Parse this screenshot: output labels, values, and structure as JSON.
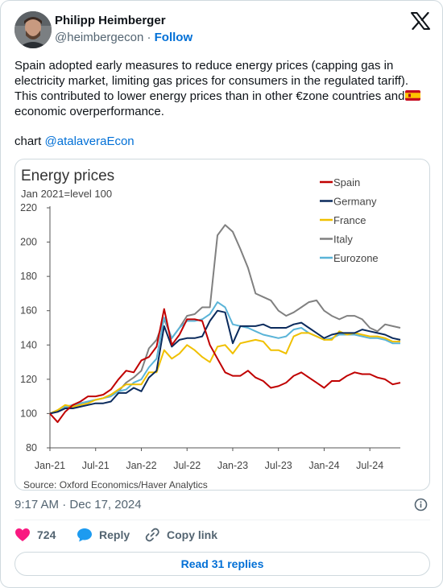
{
  "author": {
    "name": "Philipp Heimberger",
    "handle": "@heimbergecon",
    "separator": "·",
    "follow_label": "Follow"
  },
  "tweet": {
    "text_before_flag": "Spain adopted early measures to reduce energy prices (capping gas in electricity market, limiting gas prices for consumers in the regulated tariff). This contributed to lower energy prices than in other €zone countries and",
    "flag_icon": "spain-flag-emoji",
    "text_after_flag": "economic overperformance.",
    "credit_prefix": "chart ",
    "credit_mention": "@atalaveraEcon"
  },
  "meta": {
    "time": "9:17 AM",
    "separator": "·",
    "date": "Dec 17, 2024"
  },
  "actions": {
    "like_count": "724",
    "reply_label": "Reply",
    "copy_label": "Copy link"
  },
  "read_replies_label": "Read 31 replies",
  "colors": {
    "link": "#006fd6",
    "like": "#f91880",
    "reply": "#1d9bf0",
    "text_secondary": "#536471"
  },
  "chart_data": {
    "type": "line",
    "title": "Energy prices",
    "subtitle": "Jan 2021=level 100",
    "source": "Source: Oxford Economics/Haver Analytics",
    "ylim": [
      80,
      220
    ],
    "yticks": [
      80,
      100,
      120,
      140,
      160,
      180,
      200,
      220
    ],
    "xticks": [
      {
        "label": "Jan-21",
        "index": 0
      },
      {
        "label": "Jul-21",
        "index": 6
      },
      {
        "label": "Jan-22",
        "index": 12
      },
      {
        "label": "Jul-22",
        "index": 18
      },
      {
        "label": "Jan-23",
        "index": 24
      },
      {
        "label": "Jul-23",
        "index": 30
      },
      {
        "label": "Jan-24",
        "index": 36
      },
      {
        "label": "Jul-24",
        "index": 42
      }
    ],
    "grid": false,
    "legend_position": "top-right",
    "series": [
      {
        "name": "Spain",
        "color": "#c00000",
        "values": [
          100,
          95,
          101,
          105,
          107,
          110,
          110,
          111,
          114,
          120,
          125,
          124,
          131,
          133,
          139,
          161,
          140,
          146,
          155,
          155,
          154,
          140,
          132,
          124,
          122,
          122,
          125,
          121,
          119,
          115,
          116,
          118,
          122,
          124,
          121,
          118,
          115,
          119,
          119,
          122,
          124,
          123,
          123,
          121,
          120,
          117,
          118
        ]
      },
      {
        "name": "Germany",
        "color": "#0a2a5c",
        "values": [
          100,
          101,
          103,
          103,
          104,
          105,
          106,
          106,
          107,
          112,
          112,
          115,
          113,
          121,
          125,
          151,
          139,
          143,
          144,
          144,
          145,
          154,
          160,
          159,
          141,
          151,
          151,
          151,
          152,
          150,
          150,
          150,
          152,
          153,
          150,
          147,
          144,
          146,
          147,
          147,
          147,
          149,
          148,
          147,
          146,
          144,
          143
        ]
      },
      {
        "name": "France",
        "color": "#f0c000",
        "values": [
          100,
          102,
          105,
          104,
          105,
          106,
          108,
          109,
          111,
          114,
          117,
          117,
          117,
          124,
          124,
          137,
          132,
          135,
          140,
          137,
          133,
          130,
          139,
          140,
          135,
          141,
          142,
          143,
          142,
          137,
          137,
          135,
          145,
          147,
          147,
          145,
          143,
          143,
          148,
          146,
          147,
          146,
          145,
          145,
          144,
          142,
          142
        ]
      },
      {
        "name": "Italy",
        "color": "#808080",
        "values": [
          100,
          101,
          103,
          104,
          106,
          107,
          108,
          109,
          111,
          113,
          118,
          121,
          125,
          138,
          143,
          155,
          144,
          150,
          157,
          158,
          162,
          162,
          204,
          210,
          206,
          196,
          185,
          170,
          168,
          166,
          160,
          157,
          159,
          162,
          165,
          166,
          160,
          157,
          155,
          157,
          157,
          155,
          150,
          148,
          152,
          151,
          150
        ]
      },
      {
        "name": "Eurozone",
        "color": "#5ab4d8",
        "values": [
          100,
          102,
          104,
          105,
          106,
          107,
          108,
          109,
          110,
          113,
          114,
          118,
          120,
          127,
          132,
          156,
          144,
          150,
          154,
          154,
          155,
          158,
          165,
          162,
          152,
          151,
          150,
          148,
          146,
          145,
          144,
          145,
          149,
          150,
          147,
          145,
          143,
          144,
          146,
          146,
          146,
          145,
          144,
          144,
          143,
          141,
          141
        ]
      }
    ]
  }
}
